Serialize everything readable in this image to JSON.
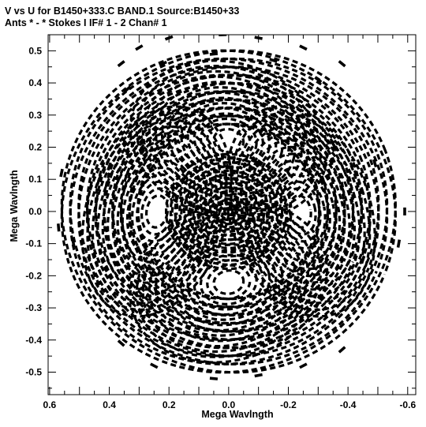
{
  "chart_data": {
    "type": "scatter",
    "title": "V vs U for B1450+333.C BAND.1   Source:B1450+33",
    "subtitle": "Ants * - *     Stokes I   IF# 1 - 2   Chan# 1",
    "xlabel": "Mega Wavlngth",
    "ylabel": "Mega Wavlngth",
    "xlim": [
      0.605,
      -0.627
    ],
    "ylim": [
      -0.57,
      0.55
    ],
    "x_ticks": [
      0.6,
      0.4,
      0.2,
      0.0,
      -0.2,
      -0.4,
      -0.6
    ],
    "x_tick_labels": [
      "0.6",
      "0.4",
      "0.2",
      "0.0",
      "-0.2",
      "-0.4",
      "-0.6"
    ],
    "y_ticks": [
      0.5,
      0.4,
      0.3,
      0.2,
      0.1,
      0.0,
      -0.1,
      -0.2,
      -0.3,
      -0.4,
      -0.5
    ],
    "y_tick_labels": [
      "0.5",
      "0.4",
      "0.3",
      "0.2",
      "0.1",
      "0.0",
      "-0.1",
      "-0.2",
      "-0.3",
      "-0.4",
      "-0.5"
    ],
    "x_reversed": true,
    "grid": false,
    "mark_color": "#000000",
    "series": [
      {
        "values": [
          {
            "x": 0.36,
            "y": 0.46
          },
          {
            "x": 0.3,
            "y": 0.51
          },
          {
            "x": 0.2,
            "y": 0.54
          },
          {
            "x": 0.02,
            "y": 0.55
          },
          {
            "x": -0.1,
            "y": 0.54
          },
          {
            "x": -0.25,
            "y": 0.51
          },
          {
            "x": -0.38,
            "y": 0.46
          },
          {
            "x": 0.34,
            "y": 0.38
          },
          {
            "x": 0.22,
            "y": 0.46
          },
          {
            "x": 0.05,
            "y": 0.49
          },
          {
            "x": -0.15,
            "y": 0.47
          },
          {
            "x": -0.3,
            "y": 0.41
          },
          {
            "x": 0.56,
            "y": 0.12
          },
          {
            "x": 0.57,
            "y": -0.05
          },
          {
            "x": 0.52,
            "y": -0.1
          },
          {
            "x": 0.4,
            "y": 0.14
          },
          {
            "x": 0.15,
            "y": 0.1
          },
          {
            "x": -0.1,
            "y": 0.15
          },
          {
            "x": -0.2,
            "y": 0.12
          },
          {
            "x": -0.35,
            "y": 0.21
          },
          {
            "x": -0.49,
            "y": 0.15
          },
          {
            "x": -0.59,
            "y": 0.0
          },
          {
            "x": -0.57,
            "y": -0.1
          },
          {
            "x": -0.45,
            "y": -0.15
          },
          {
            "x": 0.3,
            "y": -0.12
          },
          {
            "x": 0.1,
            "y": -0.15
          },
          {
            "x": -0.12,
            "y": -0.12
          },
          {
            "x": 0.36,
            "y": -0.41
          },
          {
            "x": 0.25,
            "y": -0.48
          },
          {
            "x": 0.05,
            "y": -0.52
          },
          {
            "x": -0.1,
            "y": -0.51
          },
          {
            "x": -0.25,
            "y": -0.48
          },
          {
            "x": -0.38,
            "y": -0.43
          },
          {
            "x": 0.0,
            "y": 0.05
          },
          {
            "x": 0.03,
            "y": -0.03
          },
          {
            "x": -0.02,
            "y": 0.01
          }
        ]
      }
    ]
  }
}
